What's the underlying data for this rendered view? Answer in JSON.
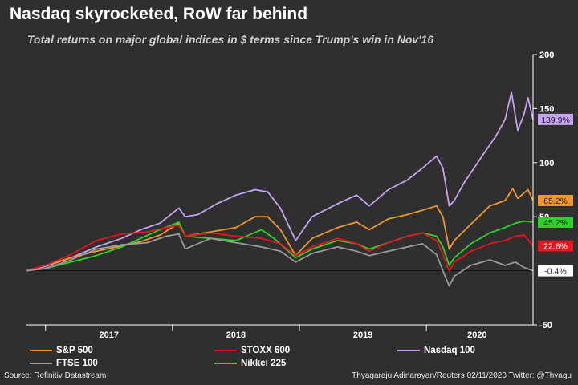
{
  "header": {
    "title": "Nasdaq skyrocketed, RoW far behind",
    "subtitle": "Total returns on major global indices in $ terms since Trump's win in Nov'16"
  },
  "footer": {
    "source": "Source: Refinitiv Datastream",
    "credit": "Thyagaraju Adinarayan/Reuters 02/11/2020 Twitter: @Thyagu"
  },
  "chart_data": {
    "type": "line",
    "title": "Nasdaq skyrocketed, RoW far behind",
    "subtitle": "Total returns on major global indices in $ terms since Trump's win in Nov'16",
    "xlabel": "",
    "ylabel": "",
    "xlim": [
      2016.85,
      2020.84
    ],
    "ylim": [
      -50,
      200
    ],
    "y_ticks": [
      200,
      150,
      100,
      50,
      -50
    ],
    "y_tick_labels": [
      "200",
      "150",
      "100",
      "50",
      "-50"
    ],
    "x_tick_labels": [
      "2017",
      "2018",
      "2019",
      "2020"
    ],
    "x_label_positions": [
      2017.5,
      2018.5,
      2019.5,
      2020.4
    ],
    "year_boundaries": [
      2017.0,
      2018.0,
      2019.0,
      2020.0
    ],
    "zero_line": 0,
    "legend_position": "bottom",
    "colors": {
      "background": "#2f2f2f",
      "S&P 500": "#f0962a",
      "STOXX 600": "#e8141e",
      "Nasdaq 100": "#c3a3f2",
      "FTSE 100": "#9a9a9a",
      "Nikkei 225": "#2bd42b"
    },
    "series": [
      {
        "name": "Nasdaq 100",
        "color": "#c3a3f2",
        "end_label": "139.9%",
        "x": [
          2016.85,
          2017.0,
          2017.2,
          2017.4,
          2017.6,
          2017.75,
          2017.9,
          2018.05,
          2018.1,
          2018.2,
          2018.35,
          2018.5,
          2018.65,
          2018.75,
          2018.85,
          2018.97,
          2019.1,
          2019.3,
          2019.45,
          2019.55,
          2019.7,
          2019.85,
          2019.97,
          2020.08,
          2020.13,
          2020.18,
          2020.22,
          2020.3,
          2020.45,
          2020.55,
          2020.62,
          2020.67,
          2020.72,
          2020.77,
          2020.8,
          2020.84
        ],
        "y": [
          0,
          4,
          12,
          22,
          30,
          38,
          44,
          58,
          50,
          52,
          62,
          70,
          75,
          73,
          58,
          28,
          50,
          62,
          70,
          60,
          75,
          84,
          95,
          106,
          95,
          60,
          65,
          82,
          108,
          125,
          140,
          165,
          130,
          145,
          160,
          140
        ]
      },
      {
        "name": "S&P 500",
        "color": "#f0962a",
        "end_label": "65.2%",
        "x": [
          2016.85,
          2017.0,
          2017.2,
          2017.4,
          2017.6,
          2017.75,
          2017.9,
          2018.05,
          2018.1,
          2018.3,
          2018.5,
          2018.65,
          2018.75,
          2018.85,
          2018.97,
          2019.1,
          2019.3,
          2019.45,
          2019.55,
          2019.7,
          2019.85,
          2019.97,
          2020.08,
          2020.13,
          2020.18,
          2020.22,
          2020.35,
          2020.5,
          2020.62,
          2020.68,
          2020.72,
          2020.77,
          2020.8,
          2020.84
        ],
        "y": [
          0,
          5,
          12,
          18,
          23,
          27,
          33,
          44,
          32,
          36,
          40,
          50,
          50,
          38,
          14,
          30,
          40,
          45,
          38,
          48,
          52,
          56,
          60,
          50,
          20,
          28,
          43,
          60,
          65,
          76,
          67,
          72,
          75,
          65
        ]
      },
      {
        "name": "Nikkei 225",
        "color": "#2bd42b",
        "end_label": "45.2%",
        "x": [
          2016.85,
          2017.0,
          2017.2,
          2017.4,
          2017.6,
          2017.75,
          2017.9,
          2018.05,
          2018.1,
          2018.3,
          2018.5,
          2018.7,
          2018.8,
          2018.97,
          2019.1,
          2019.3,
          2019.45,
          2019.55,
          2019.7,
          2019.85,
          2019.97,
          2020.08,
          2020.13,
          2020.18,
          2020.22,
          2020.35,
          2020.5,
          2020.62,
          2020.7,
          2020.77,
          2020.84
        ],
        "y": [
          0,
          2,
          8,
          14,
          22,
          30,
          38,
          45,
          32,
          30,
          28,
          38,
          30,
          12,
          20,
          28,
          25,
          20,
          26,
          32,
          35,
          32,
          22,
          5,
          12,
          25,
          35,
          40,
          44,
          46,
          45
        ]
      },
      {
        "name": "STOXX 600",
        "color": "#e8141e",
        "end_label": "22.6%",
        "x": [
          2016.85,
          2017.0,
          2017.2,
          2017.4,
          2017.6,
          2017.8,
          2017.95,
          2018.05,
          2018.1,
          2018.3,
          2018.5,
          2018.7,
          2018.85,
          2018.97,
          2019.1,
          2019.3,
          2019.45,
          2019.55,
          2019.7,
          2019.85,
          2019.97,
          2020.08,
          2020.13,
          2020.18,
          2020.22,
          2020.35,
          2020.5,
          2020.62,
          2020.7,
          2020.77,
          2020.84
        ],
        "y": [
          0,
          5,
          15,
          28,
          34,
          36,
          40,
          42,
          32,
          35,
          32,
          30,
          25,
          14,
          22,
          30,
          25,
          18,
          26,
          32,
          35,
          28,
          15,
          0,
          8,
          18,
          25,
          28,
          32,
          33,
          23
        ]
      },
      {
        "name": "FTSE 100",
        "color": "#9a9a9a",
        "end_label": "-0.4%",
        "x": [
          2016.85,
          2017.0,
          2017.2,
          2017.4,
          2017.6,
          2017.8,
          2017.95,
          2018.05,
          2018.1,
          2018.3,
          2018.5,
          2018.7,
          2018.85,
          2018.97,
          2019.1,
          2019.3,
          2019.45,
          2019.55,
          2019.7,
          2019.85,
          2019.97,
          2020.08,
          2020.13,
          2020.18,
          2020.22,
          2020.35,
          2020.5,
          2020.62,
          2020.7,
          2020.77,
          2020.84
        ],
        "y": [
          0,
          2,
          10,
          20,
          24,
          26,
          32,
          34,
          20,
          30,
          26,
          22,
          18,
          8,
          16,
          22,
          18,
          14,
          18,
          22,
          25,
          15,
          0,
          -14,
          -5,
          5,
          10,
          5,
          8,
          3,
          0
        ]
      }
    ]
  }
}
